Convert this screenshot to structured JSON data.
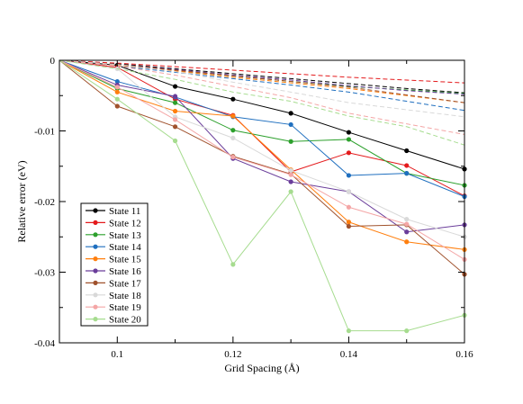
{
  "chart_data": {
    "type": "line",
    "xlabel": "Grid Spacing (Å)",
    "ylabel": "Relative error (eV)",
    "xlim": [
      0.09,
      0.16
    ],
    "ylim": [
      -0.04,
      0
    ],
    "x": [
      0.1,
      0.11,
      0.12,
      0.13,
      0.14,
      0.15,
      0.16
    ],
    "x_tick_labels": [
      "0.1",
      "0.12",
      "0.14",
      "0.16"
    ],
    "x_ticks": [
      0.1,
      0.12,
      0.14,
      0.16
    ],
    "y_tick_labels": [
      "0",
      "-0.01",
      "-0.02",
      "-0.03",
      "-0.04"
    ],
    "y_ticks": [
      0,
      -0.01,
      -0.02,
      -0.03,
      -0.04
    ],
    "grid": false,
    "legend_position": "bottom-left",
    "series": [
      {
        "name": "State 11",
        "color": "#000000",
        "start": [
          0.09,
          0
        ],
        "solid": [
          -0.0007,
          -0.0037,
          -0.0055,
          -0.0075,
          -0.0102,
          -0.0128,
          -0.0154
        ],
        "dashed": [
          -0.0005,
          -0.0012,
          -0.0019,
          -0.0026,
          -0.0033,
          -0.004,
          -0.0046
        ]
      },
      {
        "name": "State 12",
        "color": "#e41a1c",
        "start": [
          0.09,
          0
        ],
        "solid": [
          -0.001,
          -0.0055,
          -0.0078,
          -0.0158,
          -0.0131,
          -0.0149,
          -0.0192
        ],
        "dashed": [
          -0.0004,
          -0.0009,
          -0.0014,
          -0.0019,
          -0.0024,
          -0.0028,
          -0.0032
        ]
      },
      {
        "name": "State 13",
        "color": "#2ca02c",
        "start": [
          0.09,
          0
        ],
        "solid": [
          -0.004,
          -0.006,
          -0.0099,
          -0.0115,
          -0.0112,
          -0.016,
          -0.0177
        ],
        "dashed": [
          -0.0006,
          -0.0014,
          -0.0022,
          -0.003,
          -0.0037,
          -0.0042,
          -0.0047
        ]
      },
      {
        "name": "State 14",
        "color": "#1f6fbf",
        "start": [
          0.09,
          0
        ],
        "solid": [
          -0.003,
          -0.0052,
          -0.008,
          -0.0091,
          -0.0163,
          -0.016,
          -0.0193
        ],
        "dashed": [
          -0.0008,
          -0.0017,
          -0.0026,
          -0.0035,
          -0.0045,
          -0.0058,
          -0.0071
        ]
      },
      {
        "name": "State 15",
        "color": "#ff7f0e",
        "start": [
          0.09,
          0
        ],
        "solid": [
          -0.0045,
          -0.0072,
          -0.0079,
          -0.0155,
          -0.0229,
          -0.0257,
          -0.0268
        ],
        "dashed": [
          -0.0007,
          -0.0015,
          -0.0024,
          -0.0032,
          -0.004,
          -0.005,
          -0.006
        ]
      },
      {
        "name": "State 16",
        "color": "#6a3d9a",
        "start": [
          0.09,
          0
        ],
        "solid": [
          -0.0035,
          -0.0051,
          -0.0139,
          -0.0172,
          -0.0186,
          -0.0243,
          -0.0233
        ],
        "dashed": [
          -0.0006,
          -0.0013,
          -0.0021,
          -0.0028,
          -0.0036,
          -0.0043,
          -0.0048
        ]
      },
      {
        "name": "State 17",
        "color": "#a0522d",
        "start": [
          0.09,
          0
        ],
        "solid": [
          -0.0065,
          -0.0094,
          -0.0136,
          -0.0161,
          -0.0235,
          -0.0233,
          -0.0303
        ],
        "dashed": [
          -0.0006,
          -0.0014,
          -0.0022,
          -0.003,
          -0.0038,
          -0.0049,
          -0.006
        ]
      },
      {
        "name": "State 18",
        "color": "#d9d9d9",
        "start": [
          0.09,
          0
        ],
        "solid": [
          -0.0012,
          -0.008,
          -0.011,
          -0.0156,
          -0.0186,
          -0.0225,
          -0.025
        ],
        "dashed": [
          -0.0006,
          -0.0016,
          -0.0031,
          -0.0045,
          -0.006,
          -0.007,
          -0.008
        ]
      },
      {
        "name": "State 19",
        "color": "#f4a6a6",
        "start": [
          0.09,
          0
        ],
        "solid": [
          -0.0038,
          -0.0084,
          -0.0137,
          -0.0162,
          -0.0208,
          -0.0232,
          -0.0282
        ],
        "dashed": [
          -0.0008,
          -0.0021,
          -0.0037,
          -0.0053,
          -0.0075,
          -0.009,
          -0.0105
        ]
      },
      {
        "name": "State 20",
        "color": "#a6dc8f",
        "start": [
          0.09,
          0
        ],
        "solid": [
          -0.0055,
          -0.0114,
          -0.0289,
          -0.0186,
          -0.0383,
          -0.0383,
          -0.0361
        ],
        "dashed": [
          -0.0012,
          -0.0027,
          -0.0045,
          -0.0058,
          -0.0079,
          -0.0094,
          -0.012
        ]
      }
    ]
  }
}
